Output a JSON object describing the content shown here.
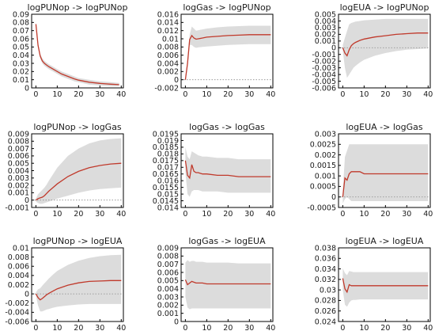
{
  "chart_data": [
    {
      "type": "line",
      "title": "logPUNop -> logPUNop",
      "x": [
        0,
        1,
        2,
        3,
        4,
        5,
        6,
        8,
        10,
        12,
        15,
        18,
        20,
        25,
        30,
        35,
        39
      ],
      "xlim": [
        -2,
        41
      ],
      "xticks": [
        "0",
        "10",
        "20",
        "30",
        "40"
      ],
      "ylim": [
        0,
        0.09
      ],
      "yticks": [
        "0",
        "0.01",
        "0.02",
        "0.03",
        "0.04",
        "0.05",
        "0.06",
        "0.07",
        "0.08",
        "0.09"
      ],
      "zero_line": false,
      "series": [
        {
          "role": "upper",
          "values": [
            0.08,
            0.055,
            0.042,
            0.036,
            0.033,
            0.031,
            0.029,
            0.026,
            0.023,
            0.02,
            0.017,
            0.014,
            0.012,
            0.01,
            0.008,
            0.007,
            0.006
          ]
        },
        {
          "role": "lower",
          "values": [
            0.076,
            0.049,
            0.036,
            0.03,
            0.027,
            0.025,
            0.023,
            0.02,
            0.017,
            0.014,
            0.011,
            0.008,
            0.007,
            0.004,
            0.003,
            0.002,
            0.002
          ]
        },
        {
          "role": "response",
          "values": [
            0.078,
            0.052,
            0.039,
            0.033,
            0.03,
            0.028,
            0.026,
            0.023,
            0.02,
            0.017,
            0.014,
            0.011,
            0.0095,
            0.007,
            0.0055,
            0.0045,
            0.004
          ]
        }
      ]
    },
    {
      "type": "line",
      "title": "logGas -> logPUNop",
      "x": [
        0,
        1,
        2,
        3,
        4,
        5,
        6,
        8,
        10,
        15,
        20,
        25,
        30,
        35,
        40
      ],
      "xlim": [
        -2,
        41
      ],
      "xticks": [
        "0",
        "10",
        "20",
        "30",
        "40"
      ],
      "ylim": [
        -0.002,
        0.016
      ],
      "yticks": [
        "-0.002",
        "0",
        "0.002",
        "0.004",
        "0.006",
        "0.008",
        "0.01",
        "0.012",
        "0.014",
        "0.016"
      ],
      "zero_line": true,
      "series": [
        {
          "role": "upper",
          "values": [
            0.0005,
            0.005,
            0.011,
            0.013,
            0.0125,
            0.012,
            0.0121,
            0.0123,
            0.0125,
            0.0128,
            0.013,
            0.0131,
            0.0132,
            0.0132,
            0.0132
          ]
        },
        {
          "role": "lower",
          "values": [
            -0.0005,
            0.003,
            0.0085,
            0.0085,
            0.008,
            0.0078,
            0.0079,
            0.008,
            0.0081,
            0.0083,
            0.0085,
            0.0086,
            0.0087,
            0.0087,
            0.0087
          ]
        },
        {
          "role": "response",
          "values": [
            0.0,
            0.004,
            0.0098,
            0.0108,
            0.0102,
            0.0099,
            0.01,
            0.0102,
            0.0104,
            0.0106,
            0.0108,
            0.0109,
            0.011,
            0.011,
            0.011
          ]
        }
      ]
    },
    {
      "type": "line",
      "title": "logEUA -> logPUNop",
      "x": [
        0,
        1,
        2,
        3,
        4,
        5,
        6,
        8,
        10,
        15,
        20,
        25,
        30,
        35,
        40
      ],
      "xlim": [
        -2,
        41
      ],
      "xticks": [
        "0",
        "10",
        "20",
        "30",
        "40"
      ],
      "ylim": [
        -0.006,
        0.005
      ],
      "yticks": [
        "-0.006",
        "-0.005",
        "-0.004",
        "-0.003",
        "-0.002",
        "-0.001",
        "0",
        "0.001",
        "0.002",
        "0.003",
        "0.004",
        "0.005"
      ],
      "zero_line": true,
      "series": [
        {
          "role": "upper",
          "values": [
            0.0004,
            0.0015,
            0.0025,
            0.0035,
            0.0037,
            0.0038,
            0.0039,
            0.004,
            0.0041,
            0.0042,
            0.0043,
            0.0043,
            0.0043,
            0.0043,
            0.0043
          ]
        },
        {
          "role": "lower",
          "values": [
            -0.0004,
            -0.003,
            -0.0045,
            -0.004,
            -0.0035,
            -0.003,
            -0.0027,
            -0.0022,
            -0.0018,
            -0.0012,
            -0.0008,
            -0.0005,
            -0.0003,
            -0.0002,
            -0.0001
          ]
        },
        {
          "role": "response",
          "values": [
            0.0,
            -0.0008,
            -0.0012,
            -0.0003,
            0.0003,
            0.0006,
            0.0008,
            0.0011,
            0.0013,
            0.0016,
            0.0018,
            0.002,
            0.0021,
            0.0022,
            0.0022
          ]
        }
      ]
    },
    {
      "type": "line",
      "title": "logPUNop -> logGas",
      "x": [
        0,
        1,
        2,
        3,
        4,
        5,
        6,
        8,
        10,
        15,
        20,
        25,
        30,
        35,
        40
      ],
      "xlim": [
        -2,
        41
      ],
      "xticks": [
        "0",
        "10",
        "20",
        "30",
        "40"
      ],
      "ylim": [
        -0.001,
        0.009
      ],
      "yticks": [
        "-0.001",
        "0",
        "0.001",
        "0.002",
        "0.003",
        "0.004",
        "0.005",
        "0.006",
        "0.007",
        "0.008",
        "0.009"
      ],
      "zero_line": true,
      "series": [
        {
          "role": "upper",
          "values": [
            0.0002,
            0.0008,
            0.0011,
            0.0014,
            0.0017,
            0.0021,
            0.0026,
            0.0035,
            0.0044,
            0.006,
            0.007,
            0.0077,
            0.0081,
            0.0083,
            0.0084
          ]
        },
        {
          "role": "lower",
          "values": [
            -0.0002,
            -0.0004,
            -0.0005,
            -0.0005,
            -0.0004,
            -0.0003,
            -0.0002,
            0.0,
            0.0002,
            0.0006,
            0.001,
            0.0013,
            0.0015,
            0.0016,
            0.0017
          ]
        },
        {
          "role": "response",
          "values": [
            0.0,
            0.0002,
            0.0003,
            0.0004,
            0.0006,
            0.0009,
            0.0012,
            0.0017,
            0.0022,
            0.0032,
            0.0039,
            0.0044,
            0.0047,
            0.0049,
            0.005
          ]
        }
      ]
    },
    {
      "type": "line",
      "title": "logGas -> logGas",
      "x": [
        0,
        1,
        2,
        3,
        4,
        5,
        6,
        8,
        10,
        15,
        20,
        25,
        30,
        35,
        40
      ],
      "xlim": [
        -2,
        41
      ],
      "xticks": [
        "0",
        "10",
        "20",
        "30",
        "40"
      ],
      "ylim": [
        0.014,
        0.0195
      ],
      "yticks": [
        "0.014",
        "0.0145",
        "0.015",
        "0.0155",
        "0.016",
        "0.0165",
        "0.017",
        "0.0175",
        "0.018",
        "0.0185",
        "0.019",
        "0.0195"
      ],
      "zero_line": false,
      "series": [
        {
          "role": "upper",
          "values": [
            0.0185,
            0.0178,
            0.0176,
            0.0182,
            0.0181,
            0.018,
            0.0179,
            0.0178,
            0.0178,
            0.0177,
            0.0177,
            0.0176,
            0.0176,
            0.0176,
            0.0176
          ]
        },
        {
          "role": "lower",
          "values": [
            0.0166,
            0.015,
            0.0148,
            0.0152,
            0.0153,
            0.0153,
            0.0153,
            0.0152,
            0.0152,
            0.0152,
            0.0151,
            0.0151,
            0.0151,
            0.0151,
            0.0151
          ]
        },
        {
          "role": "response",
          "values": [
            0.0175,
            0.0164,
            0.0162,
            0.0172,
            0.0167,
            0.0166,
            0.0166,
            0.0165,
            0.0165,
            0.0164,
            0.0164,
            0.0163,
            0.0163,
            0.0163,
            0.0163
          ]
        }
      ]
    },
    {
      "type": "line",
      "title": "logEUA -> logGas",
      "x": [
        0,
        1,
        2,
        3,
        4,
        5,
        6,
        8,
        10,
        15,
        20,
        25,
        30,
        35,
        40
      ],
      "xlim": [
        -2,
        41
      ],
      "xticks": [
        "0",
        "10",
        "20",
        "30",
        "40"
      ],
      "ylim": [
        -0.0005,
        0.003
      ],
      "yticks": [
        "-0.0005",
        "0",
        "0.0005",
        "0.001",
        "0.0015",
        "0.002",
        "0.0025",
        "0.003"
      ],
      "zero_line": true,
      "series": [
        {
          "role": "upper",
          "values": [
            0.0003,
            0.0019,
            0.0022,
            0.0025,
            0.0025,
            0.0025,
            0.0025,
            0.0025,
            0.0025,
            0.0025,
            0.0025,
            0.0025,
            0.0025,
            0.0025,
            0.0025
          ]
        },
        {
          "role": "lower",
          "values": [
            -0.0003,
            -0.0001,
            0.0,
            -0.0001,
            -0.0002,
            -0.0002,
            -0.0002,
            -0.0002,
            -0.0002,
            -0.0002,
            -0.0002,
            -0.0002,
            -0.0002,
            -0.0002,
            -0.0002
          ]
        },
        {
          "role": "response",
          "values": [
            0.0,
            0.0009,
            0.0008,
            0.0011,
            0.0012,
            0.0012,
            0.0012,
            0.0012,
            0.0011,
            0.0011,
            0.0011,
            0.0011,
            0.0011,
            0.0011,
            0.0011
          ]
        }
      ]
    },
    {
      "type": "line",
      "title": "logPUNop -> logEUA",
      "x": [
        0,
        1,
        2,
        3,
        4,
        5,
        6,
        8,
        10,
        15,
        20,
        25,
        30,
        35,
        40
      ],
      "xlim": [
        -2,
        41
      ],
      "xticks": [
        "0",
        "10",
        "20",
        "30",
        "40"
      ],
      "ylim": [
        -0.006,
        0.01
      ],
      "yticks": [
        "-0.006",
        "-0.004",
        "-0.002",
        "0",
        "0.002",
        "0.004",
        "0.006",
        "0.008",
        "0.01"
      ],
      "zero_line": true,
      "series": [
        {
          "role": "upper",
          "values": [
            0.0003,
            0.001,
            0.0012,
            0.0018,
            0.0023,
            0.0028,
            0.0033,
            0.0042,
            0.005,
            0.0063,
            0.0072,
            0.0078,
            0.0082,
            0.0084,
            0.0085
          ]
        },
        {
          "role": "lower",
          "values": [
            -0.0003,
            -0.0025,
            -0.0038,
            -0.0038,
            -0.0036,
            -0.0034,
            -0.0033,
            -0.003,
            -0.0028,
            -0.0025,
            -0.0023,
            -0.0022,
            -0.0022,
            -0.0022,
            -0.0022
          ]
        },
        {
          "role": "response",
          "values": [
            0.0,
            -0.0008,
            -0.0013,
            -0.001,
            -0.0006,
            -0.0002,
            0.0001,
            0.0006,
            0.0011,
            0.0019,
            0.0024,
            0.0027,
            0.0028,
            0.0029,
            0.0029
          ]
        }
      ]
    },
    {
      "type": "line",
      "title": "logGas -> logEUA",
      "x": [
        0,
        1,
        2,
        3,
        4,
        5,
        6,
        8,
        10,
        15,
        20,
        25,
        30,
        35,
        40
      ],
      "xlim": [
        -2,
        41
      ],
      "xticks": [
        "0",
        "10",
        "20",
        "30",
        "40"
      ],
      "ylim": [
        0,
        0.009
      ],
      "yticks": [
        "0",
        "0.001",
        "0.002",
        "0.003",
        "0.004",
        "0.005",
        "0.006",
        "0.007",
        "0.008",
        "0.009"
      ],
      "zero_line": false,
      "series": [
        {
          "role": "upper",
          "values": [
            0.0072,
            0.0075,
            0.0073,
            0.0074,
            0.0074,
            0.0073,
            0.0073,
            0.0073,
            0.0072,
            0.0072,
            0.0072,
            0.0071,
            0.0071,
            0.0071,
            0.0071
          ]
        },
        {
          "role": "lower",
          "values": [
            0.003,
            0.0017,
            0.0015,
            0.0016,
            0.0016,
            0.0016,
            0.0016,
            0.0016,
            0.0016,
            0.0016,
            0.0016,
            0.0016,
            0.0016,
            0.0016,
            0.0016
          ]
        },
        {
          "role": "response",
          "values": [
            0.0051,
            0.0045,
            0.0047,
            0.0049,
            0.0048,
            0.0047,
            0.0047,
            0.0047,
            0.0046,
            0.0046,
            0.0046,
            0.0046,
            0.0046,
            0.0046,
            0.0046
          ]
        }
      ]
    },
    {
      "type": "line",
      "title": "logEUA -> logEUA",
      "x": [
        0,
        1,
        2,
        3,
        4,
        5,
        6,
        8,
        10,
        15,
        20,
        25,
        30,
        35,
        40
      ],
      "xlim": [
        -2,
        41
      ],
      "xticks": [
        "0",
        "10",
        "20",
        "30",
        "40"
      ],
      "ylim": [
        0.024,
        0.038
      ],
      "yticks": [
        "0.024",
        "0.026",
        "0.028",
        "0.03",
        "0.032",
        "0.034",
        "0.036",
        "0.038"
      ],
      "zero_line": false,
      "series": [
        {
          "role": "upper",
          "values": [
            0.0341,
            0.0332,
            0.0328,
            0.0336,
            0.0335,
            0.0334,
            0.0334,
            0.0334,
            0.0334,
            0.0334,
            0.0334,
            0.0334,
            0.0334,
            0.0334,
            0.0334
          ]
        },
        {
          "role": "lower",
          "values": [
            0.03,
            0.0272,
            0.0268,
            0.0276,
            0.028,
            0.0281,
            0.0281,
            0.0282,
            0.0282,
            0.0282,
            0.0282,
            0.0282,
            0.0282,
            0.0282,
            0.0282
          ]
        },
        {
          "role": "response",
          "values": [
            0.0322,
            0.0302,
            0.0296,
            0.031,
            0.0308,
            0.0308,
            0.0308,
            0.0308,
            0.0308,
            0.0308,
            0.0308,
            0.0308,
            0.0308,
            0.0308,
            0.0308
          ]
        }
      ]
    }
  ],
  "colors": {
    "band": "#dcdcdc",
    "response": "#c0392b",
    "axis": "#000000",
    "zero_line": "#8a8a8a",
    "text": "#1a1a1a"
  }
}
